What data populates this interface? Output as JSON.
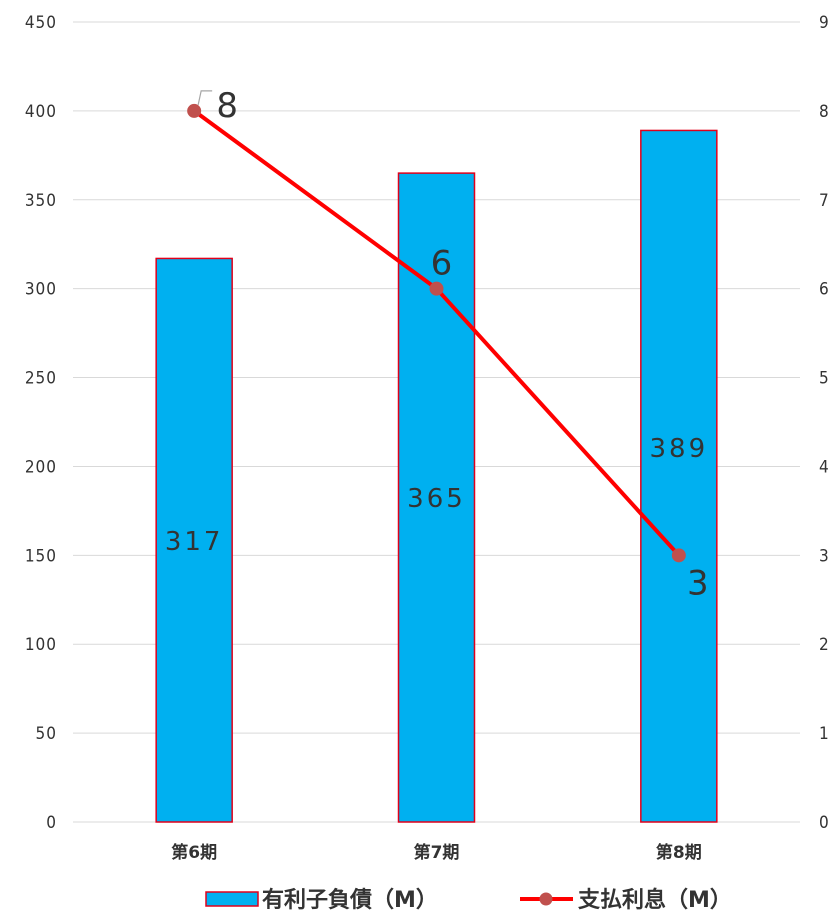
{
  "chart_data": {
    "type": "bar+line",
    "categories": [
      "第6期",
      "第7期",
      "第8期"
    ],
    "series": [
      {
        "name": "有利子負債（M）",
        "type": "bar",
        "axis": "left",
        "values": [
          317,
          365,
          389
        ],
        "color": "#00B0F0",
        "border_color": "#E0001B"
      },
      {
        "name": "支払利息（M）",
        "type": "line",
        "axis": "right",
        "values": [
          8,
          6,
          3
        ],
        "color": "#FF0000",
        "marker_color": "#C0504D"
      }
    ],
    "y_left": {
      "min": 0,
      "max": 450,
      "step": 50,
      "ticks": [
        "0",
        "50",
        "100",
        "150",
        "200",
        "250",
        "300",
        "350",
        "400",
        "450"
      ]
    },
    "y_right": {
      "min": 0,
      "max": 9,
      "step": 1,
      "ticks": [
        "0",
        "1",
        "2",
        "3",
        "4",
        "5",
        "6",
        "7",
        "8",
        "9"
      ]
    },
    "grid": true,
    "legend_position": "bottom",
    "gridline_color": "#D9D9D9"
  }
}
